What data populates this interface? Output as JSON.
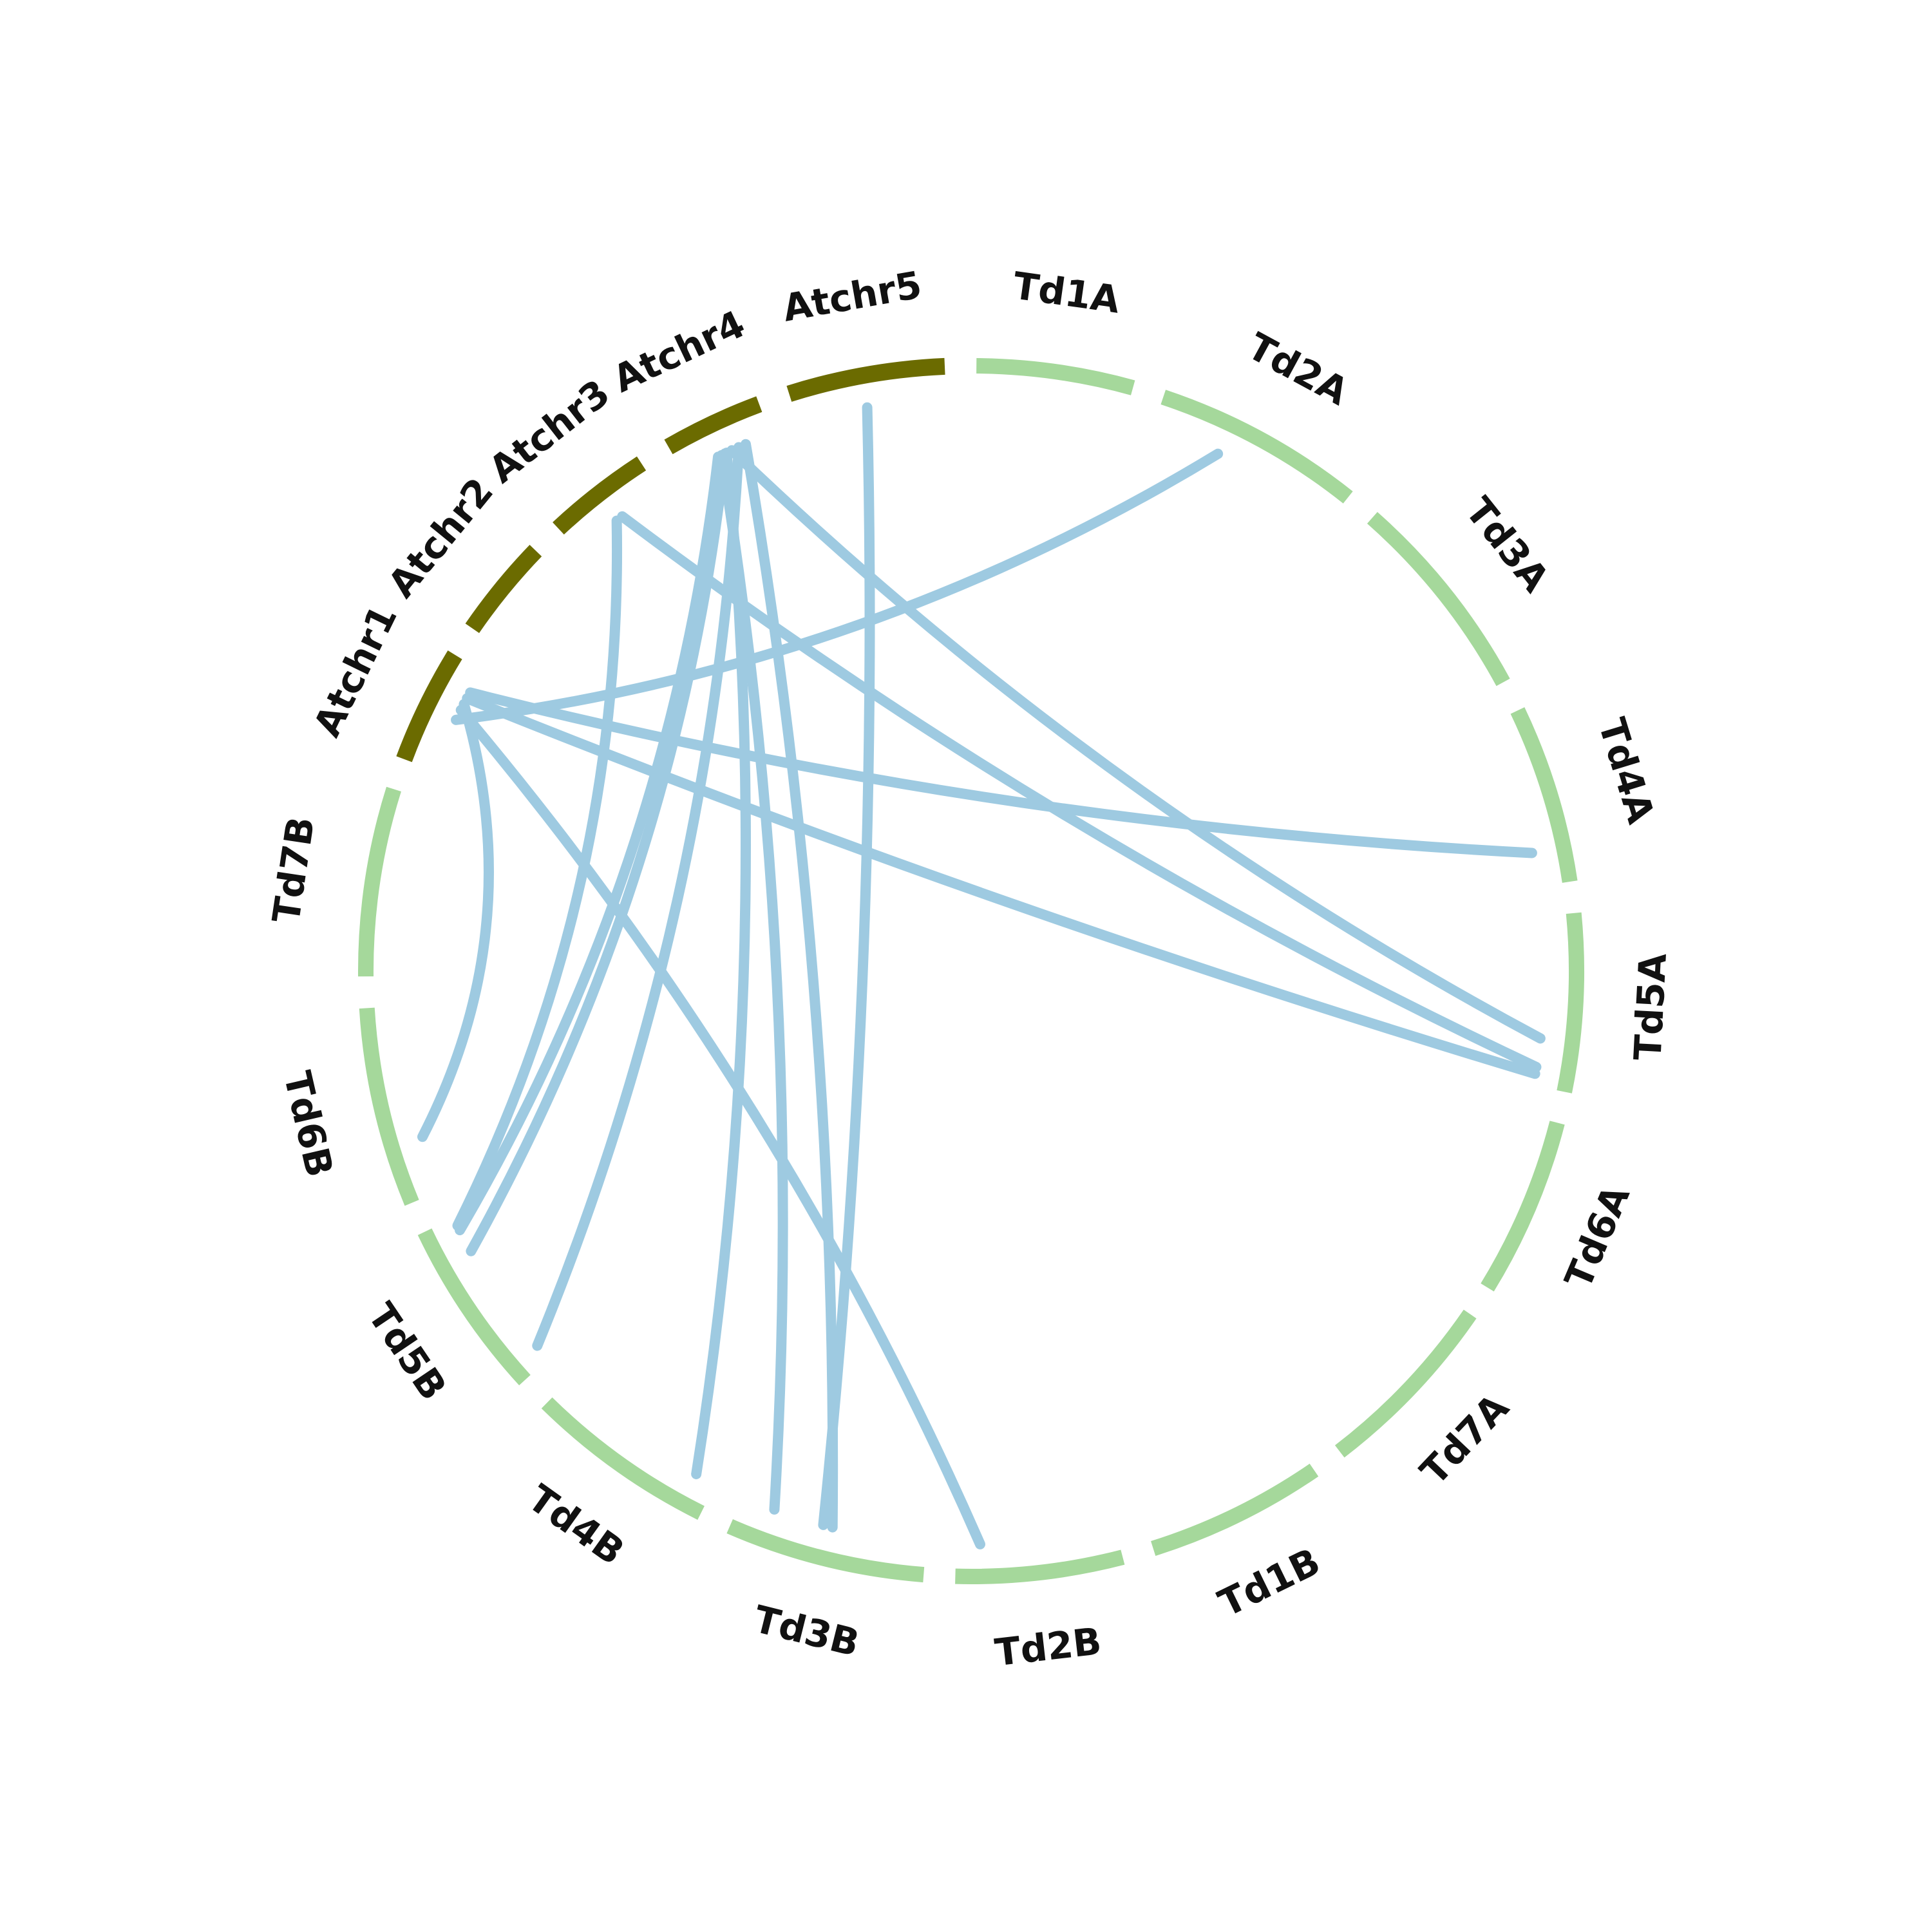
{
  "colors": {
    "arabidopsis": "#6b6b00",
    "wheat": "#a5d89b",
    "link": "#9ecae1"
  },
  "chromosomes": [
    {
      "id": "Atchr5",
      "label": "Atchr5",
      "group": "arabidopsis"
    },
    {
      "id": "Td1A",
      "label": "Td1A",
      "group": "wheat"
    },
    {
      "id": "Td2A",
      "label": "Td2A",
      "group": "wheat"
    },
    {
      "id": "Td3A",
      "label": "Td3A",
      "group": "wheat"
    },
    {
      "id": "Td4A",
      "label": "Td4A",
      "group": "wheat"
    },
    {
      "id": "Td5A",
      "label": "Td5A",
      "group": "wheat"
    },
    {
      "id": "Td6A",
      "label": "Td6A",
      "group": "wheat"
    },
    {
      "id": "Td7A",
      "label": "Td7A",
      "group": "wheat"
    },
    {
      "id": "Td1B",
      "label": "Td1B",
      "group": "wheat"
    },
    {
      "id": "Td2B",
      "label": "Td2B",
      "group": "wheat"
    },
    {
      "id": "Td3B",
      "label": "Td3B",
      "group": "wheat"
    },
    {
      "id": "Td4B",
      "label": "Td4B",
      "group": "wheat"
    },
    {
      "id": "Td5B",
      "label": "Td5B",
      "group": "wheat"
    },
    {
      "id": "Td6B",
      "label": "Td6B",
      "group": "wheat"
    },
    {
      "id": "Td7B",
      "label": "Td7B",
      "group": "wheat"
    },
    {
      "id": "Atchr1",
      "label": "Atchr1",
      "group": "arabidopsis"
    },
    {
      "id": "Atchr2",
      "label": "Atchr2",
      "group": "arabidopsis"
    },
    {
      "id": "Atchr3",
      "label": "Atchr3",
      "group": "arabidopsis"
    },
    {
      "id": "Atchr4",
      "label": "Atchr4",
      "group": "arabidopsis"
    }
  ]
}
